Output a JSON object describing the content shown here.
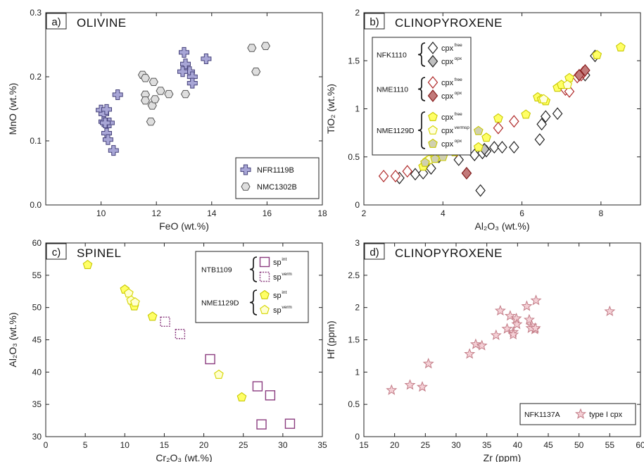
{
  "chart_data": [
    {
      "type": "scatter",
      "letter": "a)",
      "title": "OLIVINE",
      "xlabel": "FeO (wt.%)",
      "ylabel": "MnO (wt.%)",
      "xlim": [
        8,
        18
      ],
      "ylim": [
        0.0,
        0.3
      ],
      "xticks": [
        "10",
        "12",
        "14",
        "16",
        "18"
      ],
      "yticks": [
        "0.0",
        "0.1",
        "0.2",
        "0.3"
      ],
      "legend": [
        {
          "label": "NFR1119B",
          "series": 0
        },
        {
          "label": "NMC1302B",
          "series": 1
        }
      ],
      "series": [
        {
          "name": "NFR1119B",
          "marker": "cross",
          "fill": "#a8a6d6",
          "stroke": "#45417a",
          "x": [
            10.0,
            10.1,
            10.2,
            10.1,
            10.3,
            10.2,
            10.25,
            10.15,
            10.45,
            10.6,
            13.0,
            13.05,
            13.2,
            13.3,
            13.3,
            12.95,
            13.8
          ],
          "y": [
            0.148,
            0.142,
            0.149,
            0.13,
            0.128,
            0.112,
            0.102,
            0.128,
            0.085,
            0.172,
            0.238,
            0.22,
            0.208,
            0.2,
            0.19,
            0.208,
            0.228
          ]
        },
        {
          "name": "NMC1302B",
          "marker": "hexagon",
          "fill": "#dedede",
          "stroke": "#555555",
          "x": [
            11.5,
            11.6,
            11.6,
            11.85,
            11.9,
            12.15,
            12.45,
            11.95,
            11.6,
            11.8,
            13.05,
            15.45,
            15.95,
            15.6
          ],
          "y": [
            0.203,
            0.172,
            0.163,
            0.155,
            0.192,
            0.178,
            0.173,
            0.165,
            0.198,
            0.13,
            0.173,
            0.245,
            0.248,
            0.208
          ]
        }
      ]
    },
    {
      "type": "scatter",
      "letter": "b)",
      "title": "CLINOPYROXENE",
      "xlabel": "Al₂O₃ (wt.%)",
      "ylabel": "TiO₂ (wt.%)",
      "xlim": [
        2,
        9
      ],
      "ylim": [
        0,
        2
      ],
      "xticks": [
        "2",
        "4",
        "6",
        "8"
      ],
      "yticks": [
        "0",
        "0.5",
        "1",
        "1.5",
        "2"
      ],
      "legend_groups": [
        {
          "sample": "NFK1110",
          "items": [
            {
              "label": "cpx",
              "sup": "free",
              "series": 0
            },
            {
              "label": "cpx",
              "sup": "opx",
              "series": 1
            }
          ]
        },
        {
          "sample": "NME1110",
          "items": [
            {
              "label": "cpx",
              "sup": "free",
              "series": 2
            },
            {
              "label": "cpx",
              "sup": "opx",
              "series": 3
            }
          ]
        },
        {
          "sample": "NME1129D",
          "items": [
            {
              "label": "cpx",
              "sup": "free",
              "series": 4
            },
            {
              "label": "cpx",
              "sup": "vermsp",
              "series": 5
            },
            {
              "label": "cpx",
              "sup": "opx",
              "series": 6
            }
          ]
        }
      ],
      "series": [
        {
          "name": "NFK1110 cpx free",
          "marker": "diamond",
          "fill": "#ffffff",
          "stroke": "#222222",
          "x": [
            2.9,
            3.3,
            3.5,
            3.7,
            4.4,
            4.8,
            5.0,
            5.1,
            5.3,
            5.5,
            5.8,
            6.45,
            6.5,
            6.6,
            6.9,
            7.6,
            7.85,
            4.95
          ],
          "y": [
            0.28,
            0.32,
            0.33,
            0.38,
            0.47,
            0.52,
            0.54,
            0.56,
            0.6,
            0.6,
            0.6,
            0.68,
            0.84,
            0.92,
            0.95,
            1.35,
            1.55,
            0.15
          ]
        },
        {
          "name": "NFK1110 cpx opx",
          "marker": "diamond",
          "fill": "#c0c0c0",
          "stroke": "#222222",
          "x": [
            3.9,
            4.6,
            5.05
          ],
          "y": [
            0.5,
            0.33,
            0.58
          ]
        },
        {
          "name": "NME1110 cpx free",
          "marker": "diamond",
          "fill": "#ffffff",
          "stroke": "#b02a2a",
          "x": [
            2.5,
            2.8,
            3.1,
            5.4,
            5.8,
            7.1,
            7.2,
            7.4,
            7.5,
            7.55
          ],
          "y": [
            0.3,
            0.3,
            0.35,
            0.8,
            0.87,
            1.2,
            1.18,
            1.33,
            1.35,
            1.38
          ]
        },
        {
          "name": "NME1110 cpx opx",
          "marker": "diamond",
          "fill": "#c27a7a",
          "stroke": "#8a2020",
          "x": [
            4.35,
            4.6,
            7.45,
            7.6
          ],
          "y": [
            0.56,
            0.33,
            1.35,
            1.4
          ]
        },
        {
          "name": "NME1129D cpx free",
          "marker": "pentagon",
          "fill": "#ffff66",
          "stroke": "#c8c800",
          "x": [
            3.5,
            3.6,
            3.8,
            4.0,
            4.3,
            4.6,
            4.9,
            5.1,
            5.4,
            6.1,
            6.4,
            6.5,
            6.6,
            6.9,
            7.0,
            7.2,
            8.5,
            7.9
          ],
          "y": [
            0.4,
            0.46,
            0.51,
            0.52,
            0.55,
            0.58,
            0.6,
            0.7,
            0.9,
            0.94,
            1.12,
            1.1,
            1.08,
            1.22,
            1.25,
            1.32,
            1.64,
            1.56
          ]
        },
        {
          "name": "NME1129D cpx vermsp",
          "marker": "pentagon",
          "fill": "#ffffe0",
          "stroke": "#d6d600",
          "x": [
            3.65,
            3.95,
            6.55,
            7.15
          ],
          "y": [
            0.47,
            0.5,
            1.1,
            1.25
          ]
        },
        {
          "name": "NME1129D cpx opx",
          "marker": "pentagon",
          "fill": "#d0d0b0",
          "stroke": "#c8c800",
          "x": [
            3.55,
            3.8,
            4.0,
            4.9
          ],
          "y": [
            0.44,
            0.48,
            0.5,
            0.77
          ]
        }
      ]
    },
    {
      "type": "scatter",
      "letter": "c)",
      "title": "SPINEL",
      "xlabel": "Cr₂O₃ (wt.%)",
      "ylabel": "Al₂O₃ (wt.%)",
      "xlim": [
        0,
        35
      ],
      "ylim": [
        30,
        60
      ],
      "xticks": [
        "0",
        "5",
        "10",
        "15",
        "20",
        "25",
        "30",
        "35"
      ],
      "yticks": [
        "30",
        "35",
        "40",
        "45",
        "50",
        "55",
        "60"
      ],
      "legend_groups": [
        {
          "sample": "NTB1109",
          "items": [
            {
              "label": "sp",
              "sup": "int",
              "series": 0
            },
            {
              "label": "sp",
              "sup": "verm",
              "series": 1
            }
          ]
        },
        {
          "sample": "NME1129D",
          "items": [
            {
              "label": "sp",
              "sup": "int",
              "series": 2
            },
            {
              "label": "sp",
              "sup": "verm",
              "series": 3
            }
          ]
        }
      ],
      "series": [
        {
          "name": "NTB1109 sp int",
          "marker": "square",
          "fill": "#ffffff",
          "stroke": "#8b3c7f",
          "x": [
            20.8,
            26.8,
            27.3,
            28.4,
            30.9
          ],
          "y": [
            42.0,
            37.8,
            31.9,
            36.4,
            32.0
          ]
        },
        {
          "name": "NTB1109 sp verm",
          "marker": "square-dashed",
          "fill": "#ffffff",
          "stroke": "#8b3c7f",
          "x": [
            15.1,
            17.0
          ],
          "y": [
            47.8,
            45.9
          ]
        },
        {
          "name": "NME1129D sp int",
          "marker": "pentagon",
          "fill": "#ffff66",
          "stroke": "#c8c800",
          "x": [
            5.3,
            10.0,
            11.2,
            13.5,
            24.8
          ],
          "y": [
            56.6,
            52.8,
            50.2,
            48.6,
            36.1
          ]
        },
        {
          "name": "NME1129D sp verm",
          "marker": "pentagon",
          "fill": "#ffffd0",
          "stroke": "#d6d600",
          "x": [
            10.5,
            10.8,
            11.3,
            21.9
          ],
          "y": [
            52.2,
            51.1,
            50.8,
            39.6
          ]
        }
      ]
    },
    {
      "type": "scatter",
      "letter": "d)",
      "title": "CLINOPYROXENE",
      "xlabel": "Zr (ppm)",
      "ylabel": "Hf (ppm)",
      "xlim": [
        15,
        60
      ],
      "ylim": [
        0,
        3
      ],
      "xticks": [
        "15",
        "20",
        "25",
        "30",
        "35",
        "40",
        "45",
        "50",
        "55",
        "60"
      ],
      "yticks": [
        "0",
        "0.5",
        "1",
        "1.5",
        "2",
        "2.5",
        "3"
      ],
      "legend_boxed": {
        "sample": "NFK1137A",
        "label": "type I cpx",
        "series": 0
      },
      "series": [
        {
          "name": "type I cpx",
          "marker": "star",
          "fill": "#f4d0d6",
          "stroke": "#c27a85",
          "x": [
            19.5,
            22.5,
            24.5,
            25.5,
            32.2,
            33.2,
            34.2,
            36.5,
            37.2,
            38.3,
            38.8,
            39.3,
            39.3,
            39.8,
            39.9,
            41.5,
            41.9,
            42.3,
            42.8,
            43.0,
            42.2,
            42.9,
            55.0
          ],
          "y": [
            0.72,
            0.8,
            0.77,
            1.13,
            1.28,
            1.43,
            1.41,
            1.57,
            1.95,
            1.67,
            1.87,
            1.62,
            1.58,
            1.83,
            1.74,
            2.02,
            1.81,
            1.72,
            1.66,
            2.11,
            1.68,
            1.68,
            1.94
          ]
        }
      ]
    }
  ]
}
